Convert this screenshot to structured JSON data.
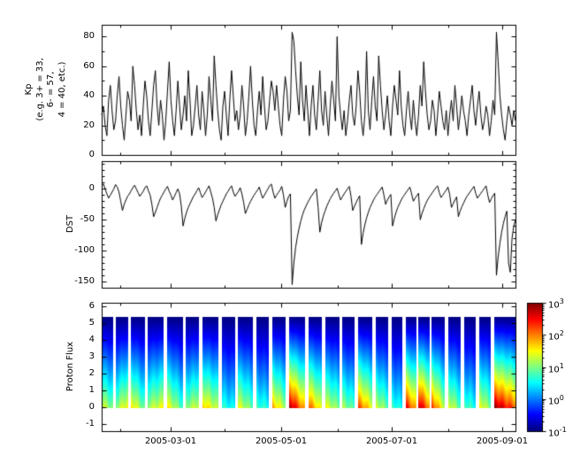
{
  "figure": {
    "background": "#ffffff",
    "line_color": "#000000"
  },
  "chart_data": {
    "x_axis": {
      "tick_labels": [
        "2005-03-01",
        "2005-05-01",
        "2005-07-01",
        "2005-09-01"
      ],
      "tick_positions": [
        0.167,
        0.434,
        0.701,
        0.968
      ],
      "minor_tick_positions": [
        0.045,
        0.298,
        0.57,
        0.837
      ]
    },
    "panels": [
      {
        "id": "kp",
        "type": "line",
        "ylabel": "Kp\n(e.g. 3+ = 33,\n6- = 57,\n4 = 40, etc.)",
        "yticks": [
          0,
          20,
          40,
          60,
          80
        ],
        "ytick_minor_step": 10,
        "ylim": [
          0,
          88
        ],
        "values": [
          27,
          33,
          20,
          13,
          37,
          47,
          30,
          17,
          23,
          40,
          53,
          33,
          20,
          10,
          27,
          43,
          37,
          23,
          60,
          47,
          30,
          17,
          27,
          13,
          33,
          50,
          40,
          23,
          13,
          30,
          47,
          57,
          33,
          20,
          37,
          27,
          10,
          23,
          43,
          63,
          37,
          23,
          13,
          30,
          50,
          33,
          17,
          27,
          40,
          23,
          57,
          37,
          13,
          20,
          33,
          47,
          27,
          17,
          43,
          30,
          13,
          27,
          53,
          37,
          23,
          67,
          47,
          30,
          17,
          10,
          33,
          43,
          27,
          13,
          37,
          57,
          40,
          23,
          30,
          17,
          27,
          47,
          33,
          13,
          23,
          40,
          60,
          37,
          20,
          13,
          30,
          43,
          27,
          53,
          33,
          17,
          23,
          37,
          50,
          43,
          30,
          47,
          33,
          20,
          13,
          37,
          53,
          43,
          23,
          30,
          83,
          77,
          57,
          40,
          27,
          63,
          37,
          23,
          47,
          30,
          13,
          33,
          47,
          27,
          17,
          37,
          57,
          30,
          20,
          43,
          27,
          13,
          33,
          50,
          37,
          23,
          80,
          40,
          27,
          17,
          30,
          13,
          23,
          37,
          47,
          27,
          20,
          33,
          57,
          43,
          23,
          13,
          27,
          70,
          30,
          17,
          37,
          53,
          33,
          23,
          67,
          47,
          30,
          17,
          27,
          40,
          23,
          13,
          33,
          47,
          37,
          27,
          57,
          33,
          20,
          13,
          30,
          43,
          27,
          17,
          37,
          23,
          13,
          27,
          47,
          33,
          63,
          43,
          27,
          17,
          23,
          37,
          30,
          13,
          27,
          43,
          33,
          23,
          17,
          30,
          13,
          27,
          37,
          23,
          47,
          33,
          17,
          27,
          40,
          30,
          23,
          13,
          27,
          37,
          47,
          30,
          20,
          33,
          43,
          27,
          17,
          23,
          33,
          27,
          13,
          23,
          37,
          27,
          83,
          63,
          40,
          27,
          17,
          10,
          23,
          33,
          27,
          20,
          30,
          23
        ]
      },
      {
        "id": "dst",
        "type": "line",
        "ylabel": "DST",
        "yticks": [
          -150,
          -100,
          -50,
          0
        ],
        "ytick_minor_step": 10,
        "ylim": [
          -160,
          45
        ],
        "values": [
          5,
          8,
          0,
          -8,
          -15,
          -10,
          -5,
          0,
          7,
          3,
          -5,
          -20,
          -35,
          -25,
          -18,
          -12,
          -8,
          -3,
          2,
          6,
          0,
          -6,
          -12,
          -8,
          -4,
          2,
          5,
          -3,
          -10,
          -25,
          -45,
          -38,
          -30,
          -22,
          -15,
          -10,
          -5,
          0,
          4,
          -4,
          -10,
          -18,
          -12,
          -6,
          0,
          -8,
          -28,
          -60,
          -48,
          -38,
          -30,
          -24,
          -18,
          -12,
          -8,
          -3,
          2,
          -6,
          -14,
          -10,
          -5,
          0,
          5,
          -5,
          -15,
          -30,
          -52,
          -42,
          -34,
          -26,
          -20,
          -14,
          -8,
          -4,
          1,
          5,
          -5,
          -12,
          -8,
          -4,
          2,
          -8,
          -22,
          -40,
          -33,
          -26,
          -20,
          -15,
          -10,
          -6,
          -2,
          3,
          -7,
          -15,
          -10,
          -5,
          0,
          5,
          8,
          -5,
          -15,
          -10,
          -6,
          -2,
          4,
          -10,
          -30,
          -20,
          -12,
          -8,
          -155,
          -120,
          -95,
          -78,
          -64,
          -52,
          -42,
          -34,
          -28,
          -22,
          -17,
          -12,
          -8,
          -4,
          0,
          -30,
          -70,
          -55,
          -44,
          -36,
          -28,
          -22,
          -16,
          -11,
          -7,
          -3,
          1,
          -9,
          -18,
          -13,
          -8,
          -4,
          0,
          4,
          -12,
          -35,
          -28,
          -22,
          -16,
          -11,
          -90,
          -72,
          -58,
          -47,
          -38,
          -30,
          -24,
          -18,
          -13,
          -9,
          -5,
          -1,
          3,
          -10,
          -25,
          -18,
          -13,
          -9,
          -60,
          -48,
          -38,
          -30,
          -24,
          -18,
          -13,
          -9,
          -5,
          -1,
          3,
          -8,
          -20,
          -15,
          -11,
          -7,
          -50,
          -40,
          -32,
          -25,
          -19,
          -14,
          -10,
          -6,
          -2,
          2,
          5,
          -6,
          -14,
          -10,
          -6,
          -2,
          3,
          -9,
          -30,
          -24,
          -18,
          -13,
          -45,
          -36,
          -29,
          -23,
          -17,
          -12,
          -8,
          -4,
          0,
          4,
          -7,
          -15,
          -11,
          -7,
          -3,
          1,
          5,
          -10,
          -22,
          -16,
          -11,
          -7,
          -140,
          -110,
          -88,
          -70,
          -56,
          -45,
          -36,
          -120,
          -135,
          -80,
          -60,
          -50
        ]
      },
      {
        "id": "flux",
        "type": "heatmap",
        "ylabel": "Proton Flux",
        "yticks": [
          -1,
          0,
          1,
          2,
          3,
          4,
          5,
          6
        ],
        "ytick_minor_step": null,
        "ylim": [
          -1.4,
          6.2
        ],
        "column_y_range": [
          0,
          5.4
        ],
        "colormap": "jet",
        "log_flux_range": [
          -1,
          3
        ],
        "blocks": [
          [
            0.0,
            0.028,
            1.4,
            1.0
          ],
          [
            0.034,
            0.064,
            1.1,
            1.6
          ],
          [
            0.07,
            0.104,
            1.7,
            0.9
          ],
          [
            0.112,
            0.15,
            1.2,
            1.5
          ],
          [
            0.158,
            0.196,
            1.6,
            0.8
          ],
          [
            0.204,
            0.236,
            1.1,
            1.4
          ],
          [
            0.244,
            0.282,
            1.8,
            1.2
          ],
          [
            0.29,
            0.322,
            0.7,
            0.5
          ],
          [
            0.33,
            0.366,
            1.5,
            0.9
          ],
          [
            0.374,
            0.404,
            0.8,
            0.6
          ],
          [
            0.412,
            0.444,
            1.9,
            1.2
          ],
          [
            0.452,
            0.492,
            3.0,
            1.8
          ],
          [
            0.5,
            0.532,
            2.2,
            1.4
          ],
          [
            0.54,
            0.574,
            1.5,
            1.0
          ],
          [
            0.582,
            0.612,
            1.2,
            0.8
          ],
          [
            0.62,
            0.654,
            2.3,
            1.5
          ],
          [
            0.662,
            0.692,
            1.4,
            0.9
          ],
          [
            0.7,
            0.726,
            0.8,
            0.5
          ],
          [
            0.734,
            0.76,
            2.6,
            1.8
          ],
          [
            0.764,
            0.792,
            2.9,
            2.0
          ],
          [
            0.798,
            0.83,
            2.4,
            1.3
          ],
          [
            0.838,
            0.868,
            1.5,
            0.9
          ],
          [
            0.876,
            0.904,
            0.9,
            0.6
          ],
          [
            0.912,
            0.94,
            1.6,
            1.0
          ],
          [
            0.948,
            1.0,
            3.0,
            2.2
          ]
        ]
      }
    ],
    "colorbar": {
      "labels": [
        {
          "base": "10",
          "exp": "3"
        },
        {
          "base": "10",
          "exp": "2"
        },
        {
          "base": "10",
          "exp": "1"
        },
        {
          "base": "10",
          "exp": "0"
        },
        {
          "base": "10",
          "exp": "-1"
        }
      ],
      "positions": [
        1.0,
        0.75,
        0.5,
        0.25,
        0.0
      ]
    }
  }
}
